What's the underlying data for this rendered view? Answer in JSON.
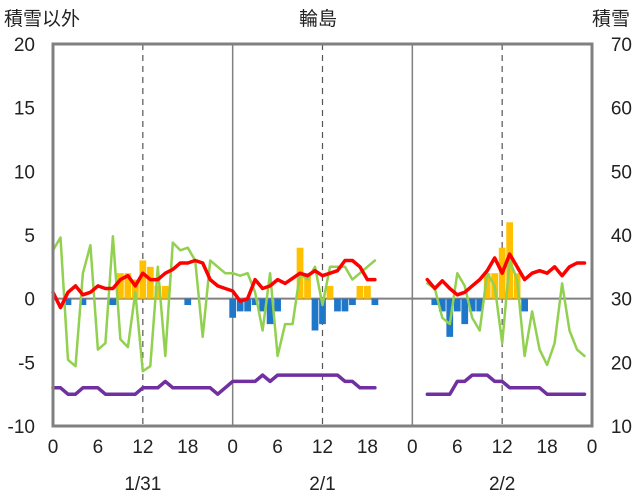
{
  "chart_data": {
    "type": "bar",
    "title": "輪島",
    "left_axis": {
      "label": "積雪以外",
      "min": -10,
      "max": 20,
      "ticks": [
        20,
        15,
        10,
        5,
        0,
        -5,
        -10
      ]
    },
    "right_axis": {
      "label": "積雪",
      "min": 10,
      "max": 70,
      "ticks": [
        70,
        60,
        50,
        40,
        30,
        20,
        10
      ]
    },
    "x_hour_labels": [
      "0",
      "6",
      "12",
      "18",
      "0",
      "6",
      "12",
      "18",
      "0",
      "6",
      "12",
      "18",
      "0"
    ],
    "x_hour_positions": [
      0,
      6,
      12,
      18,
      24,
      30,
      36,
      42,
      48,
      54,
      60,
      66,
      72
    ],
    "date_labels": [
      {
        "text": "1/31",
        "hour": 12
      },
      {
        "text": "2/1",
        "hour": 36
      },
      {
        "text": "2/2",
        "hour": 60
      }
    ],
    "day_boundaries": [
      24,
      48
    ],
    "noon_lines": [
      12,
      36,
      60
    ],
    "grid": false,
    "colors": {
      "precip_positive": "#ffc000",
      "precip_negative": "#1f77c9",
      "temperature": "#ff0000",
      "green_series": "#92d050",
      "snow_depth": "#7030a0",
      "frame": "#808080"
    },
    "bars": [
      {
        "x": 2,
        "v": -0.5
      },
      {
        "x": 4,
        "v": -0.5
      },
      {
        "x": 8,
        "v": -0.5
      },
      {
        "x": 9,
        "v": 2
      },
      {
        "x": 10,
        "v": 2
      },
      {
        "x": 11,
        "v": 1.5
      },
      {
        "x": 12,
        "v": 3
      },
      {
        "x": 13,
        "v": 2.5
      },
      {
        "x": 14,
        "v": 1
      },
      {
        "x": 15,
        "v": 1
      },
      {
        "x": 18,
        "v": -0.5
      },
      {
        "x": 24,
        "v": -1.5
      },
      {
        "x": 25,
        "v": -1
      },
      {
        "x": 26,
        "v": -1
      },
      {
        "x": 27,
        "v": -0.5
      },
      {
        "x": 28,
        "v": -1
      },
      {
        "x": 29,
        "v": -2
      },
      {
        "x": 30,
        "v": -1
      },
      {
        "x": 33,
        "v": 4
      },
      {
        "x": 34,
        "v": 2
      },
      {
        "x": 35,
        "v": -2.5
      },
      {
        "x": 36,
        "v": -2
      },
      {
        "x": 37,
        "v": 1
      },
      {
        "x": 38,
        "v": -1
      },
      {
        "x": 39,
        "v": -1
      },
      {
        "x": 40,
        "v": -0.5
      },
      {
        "x": 41,
        "v": 1
      },
      {
        "x": 42,
        "v": 1
      },
      {
        "x": 43,
        "v": -0.5
      },
      {
        "x": 51,
        "v": -0.5
      },
      {
        "x": 52,
        "v": -1
      },
      {
        "x": 53,
        "v": -3
      },
      {
        "x": 54,
        "v": -1
      },
      {
        "x": 55,
        "v": -2
      },
      {
        "x": 56,
        "v": -1
      },
      {
        "x": 57,
        "v": -1
      },
      {
        "x": 58,
        "v": 2
      },
      {
        "x": 59,
        "v": 2
      },
      {
        "x": 60,
        "v": 4
      },
      {
        "x": 61,
        "v": 6
      },
      {
        "x": 62,
        "v": 2
      },
      {
        "x": 63,
        "v": -1
      }
    ],
    "series": [
      {
        "key": "temperature",
        "axis": "left",
        "segments": [
          [
            [
              0,
              0.5
            ],
            [
              1,
              -0.7
            ],
            [
              2,
              0.5
            ],
            [
              3,
              1
            ],
            [
              4,
              0.3
            ],
            [
              5,
              0.5
            ],
            [
              6,
              1
            ],
            [
              7,
              0.8
            ],
            [
              8,
              0.8
            ],
            [
              9,
              1.5
            ],
            [
              10,
              1.8
            ],
            [
              11,
              1
            ],
            [
              12,
              2
            ],
            [
              13,
              1.5
            ],
            [
              14,
              1.5
            ],
            [
              15,
              2
            ],
            [
              16,
              2.3
            ],
            [
              17,
              2.8
            ],
            [
              18,
              2.8
            ],
            [
              19,
              3
            ],
            [
              20,
              2.8
            ],
            [
              21,
              1.5
            ],
            [
              22,
              1
            ],
            [
              23,
              0.8
            ],
            [
              24,
              0.6
            ],
            [
              25,
              -0.2
            ],
            [
              26,
              0
            ],
            [
              27,
              1.5
            ],
            [
              28,
              0.8
            ],
            [
              29,
              1
            ],
            [
              30,
              1.5
            ],
            [
              31,
              1.2
            ],
            [
              32,
              1.6
            ],
            [
              33,
              2
            ],
            [
              34,
              1.8
            ],
            [
              35,
              2.2
            ],
            [
              36,
              1.8
            ],
            [
              37,
              2
            ],
            [
              38,
              2.2
            ],
            [
              39,
              3
            ],
            [
              40,
              3
            ],
            [
              41,
              2.5
            ],
            [
              42,
              1.5
            ],
            [
              43,
              1.5
            ]
          ],
          [
            [
              50,
              1.5
            ],
            [
              51,
              0.8
            ],
            [
              52,
              1.4
            ],
            [
              53,
              0.8
            ],
            [
              54,
              0.3
            ],
            [
              55,
              0.5
            ],
            [
              56,
              1
            ],
            [
              57,
              1.5
            ],
            [
              58,
              2.2
            ],
            [
              59,
              3.2
            ],
            [
              60,
              2
            ],
            [
              61,
              3.5
            ],
            [
              62,
              2.5
            ],
            [
              63,
              1.5
            ],
            [
              64,
              2
            ],
            [
              65,
              2.2
            ],
            [
              66,
              2
            ],
            [
              67,
              2.5
            ],
            [
              68,
              1.8
            ],
            [
              69,
              2.5
            ],
            [
              70,
              2.8
            ],
            [
              71,
              2.8
            ]
          ]
        ]
      },
      {
        "key": "green_series",
        "axis": "left",
        "segments": [
          [
            [
              0,
              3.8
            ],
            [
              1,
              4.8
            ],
            [
              2,
              -4.8
            ],
            [
              3,
              -5.3
            ],
            [
              4,
              2
            ],
            [
              5,
              4.2
            ],
            [
              6,
              -4
            ],
            [
              7,
              -3.5
            ],
            [
              8,
              4.9
            ],
            [
              9,
              -3.2
            ],
            [
              10,
              -3.8
            ],
            [
              11,
              0.5
            ],
            [
              12,
              -5.7
            ],
            [
              13,
              -5.3
            ],
            [
              14,
              2.5
            ],
            [
              15,
              -4.5
            ],
            [
              16,
              4.4
            ],
            [
              17,
              3.8
            ],
            [
              18,
              4
            ],
            [
              19,
              3
            ],
            [
              20,
              -3
            ],
            [
              21,
              3
            ],
            [
              22,
              2.5
            ],
            [
              23,
              2
            ],
            [
              24,
              2
            ],
            [
              25,
              1.8
            ],
            [
              26,
              2
            ],
            [
              27,
              0.5
            ],
            [
              28,
              -2.5
            ],
            [
              29,
              2
            ],
            [
              30,
              -4.5
            ],
            [
              31,
              -2
            ],
            [
              32,
              -2
            ],
            [
              33,
              2
            ],
            [
              34,
              1.5
            ],
            [
              35,
              2.5
            ],
            [
              36,
              -0.5
            ],
            [
              37,
              2.5
            ],
            [
              38,
              2.5
            ],
            [
              39,
              2.5
            ],
            [
              40,
              1.5
            ],
            [
              41,
              2
            ],
            [
              42,
              2.5
            ],
            [
              43,
              3
            ]
          ],
          [
            [
              50,
              1.2
            ],
            [
              51,
              0.8
            ],
            [
              52,
              -1.5
            ],
            [
              53,
              -2
            ],
            [
              54,
              2
            ],
            [
              55,
              1
            ],
            [
              56,
              -1.5
            ],
            [
              57,
              -2.5
            ],
            [
              58,
              2
            ],
            [
              59,
              1
            ],
            [
              60,
              -3.5
            ],
            [
              61,
              3
            ],
            [
              62,
              1.5
            ],
            [
              63,
              -4.5
            ],
            [
              64,
              -1
            ],
            [
              65,
              -4
            ],
            [
              66,
              -5.2
            ],
            [
              67,
              -3.5
            ],
            [
              68,
              1.2
            ],
            [
              69,
              -2.5
            ],
            [
              70,
              -4
            ],
            [
              71,
              -4.5
            ]
          ]
        ]
      },
      {
        "key": "snow_depth",
        "axis": "right",
        "segments": [
          [
            [
              0,
              16
            ],
            [
              1,
              16
            ],
            [
              2,
              15
            ],
            [
              3,
              15
            ],
            [
              4,
              16
            ],
            [
              5,
              16
            ],
            [
              6,
              16
            ],
            [
              7,
              15
            ],
            [
              8,
              15
            ],
            [
              9,
              15
            ],
            [
              10,
              15
            ],
            [
              11,
              15
            ],
            [
              12,
              16
            ],
            [
              13,
              16
            ],
            [
              14,
              16
            ],
            [
              15,
              17
            ],
            [
              16,
              16
            ],
            [
              17,
              16
            ],
            [
              18,
              16
            ],
            [
              19,
              16
            ],
            [
              20,
              16
            ],
            [
              21,
              16
            ],
            [
              22,
              15
            ],
            [
              23,
              16
            ],
            [
              24,
              17
            ],
            [
              25,
              17
            ],
            [
              26,
              17
            ],
            [
              27,
              17
            ],
            [
              28,
              18
            ],
            [
              29,
              17
            ],
            [
              30,
              18
            ],
            [
              31,
              18
            ],
            [
              32,
              18
            ],
            [
              33,
              18
            ],
            [
              34,
              18
            ],
            [
              35,
              18
            ],
            [
              36,
              18
            ],
            [
              37,
              18
            ],
            [
              38,
              18
            ],
            [
              39,
              17
            ],
            [
              40,
              17
            ],
            [
              41,
              16
            ],
            [
              42,
              16
            ],
            [
              43,
              16
            ]
          ],
          [
            [
              50,
              15
            ],
            [
              51,
              15
            ],
            [
              52,
              15
            ],
            [
              53,
              15
            ],
            [
              54,
              17
            ],
            [
              55,
              17
            ],
            [
              56,
              18
            ],
            [
              57,
              18
            ],
            [
              58,
              18
            ],
            [
              59,
              17
            ],
            [
              60,
              17
            ],
            [
              61,
              16
            ],
            [
              62,
              16
            ],
            [
              63,
              16
            ],
            [
              64,
              16
            ],
            [
              65,
              16
            ],
            [
              66,
              15
            ],
            [
              67,
              15
            ],
            [
              68,
              15
            ],
            [
              69,
              15
            ],
            [
              70,
              15
            ],
            [
              71,
              15
            ]
          ]
        ]
      }
    ]
  }
}
